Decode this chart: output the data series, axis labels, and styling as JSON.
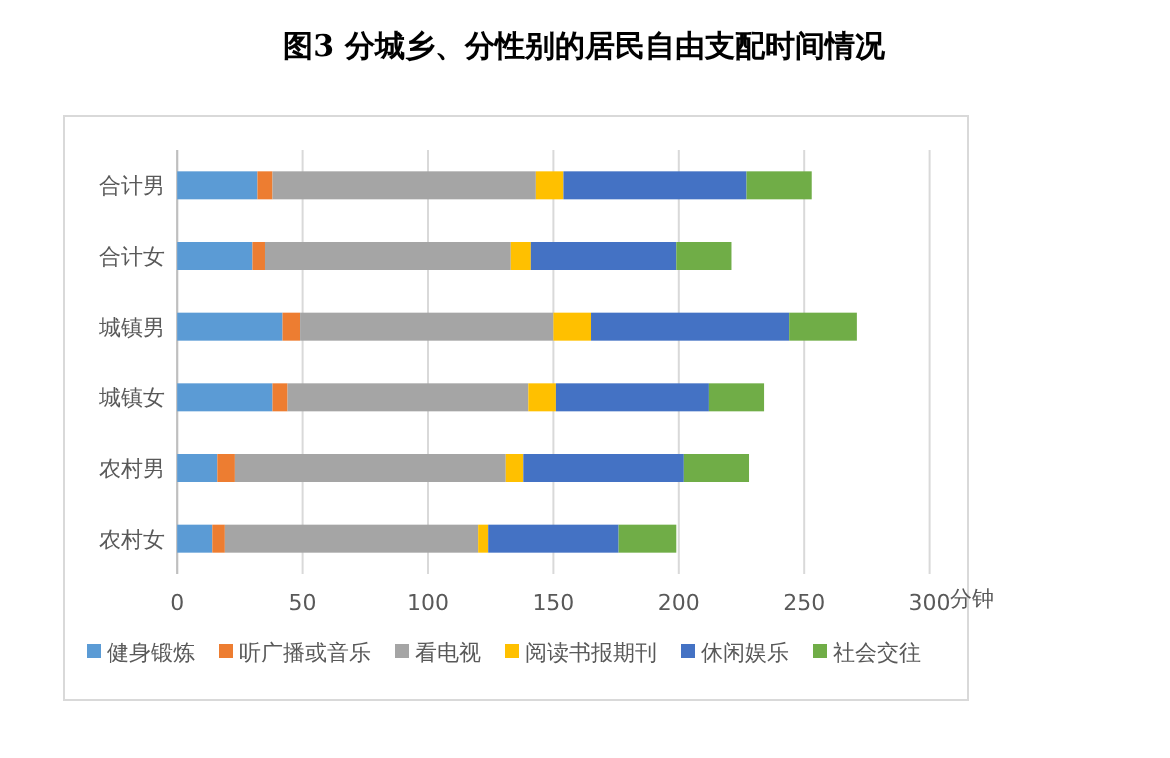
{
  "chart_data": {
    "type": "bar",
    "title": "图3 分城乡、分性别的居民自由支配时间情况",
    "orientation": "horizontal",
    "stacked": true,
    "xlabel": "分钟",
    "categories": [
      "合计男",
      "合计女",
      "城镇男",
      "城镇女",
      "农村男",
      "农村女"
    ],
    "series": [
      {
        "name": "健身锻炼",
        "color": "#5b9bd5",
        "values": [
          32,
          30,
          42,
          38,
          16,
          14
        ]
      },
      {
        "name": "听广播或音乐",
        "color": "#ed7d31",
        "values": [
          6,
          5,
          7,
          6,
          7,
          5
        ]
      },
      {
        "name": "看电视",
        "color": "#a5a5a5",
        "values": [
          105,
          98,
          101,
          96,
          108,
          101
        ]
      },
      {
        "name": "阅读书报期刊",
        "color": "#ffc000",
        "values": [
          11,
          8,
          15,
          11,
          7,
          4
        ]
      },
      {
        "name": "休闲娱乐",
        "color": "#4472c4",
        "values": [
          73,
          58,
          79,
          61,
          64,
          52
        ]
      },
      {
        "name": "社会交往",
        "color": "#70ad47",
        "values": [
          26,
          22,
          27,
          22,
          26,
          23
        ]
      }
    ],
    "xlim": [
      0,
      300
    ],
    "xticks": [
      0,
      50,
      100,
      150,
      200,
      250,
      300
    ],
    "grid": "x",
    "legend": "bottom"
  }
}
